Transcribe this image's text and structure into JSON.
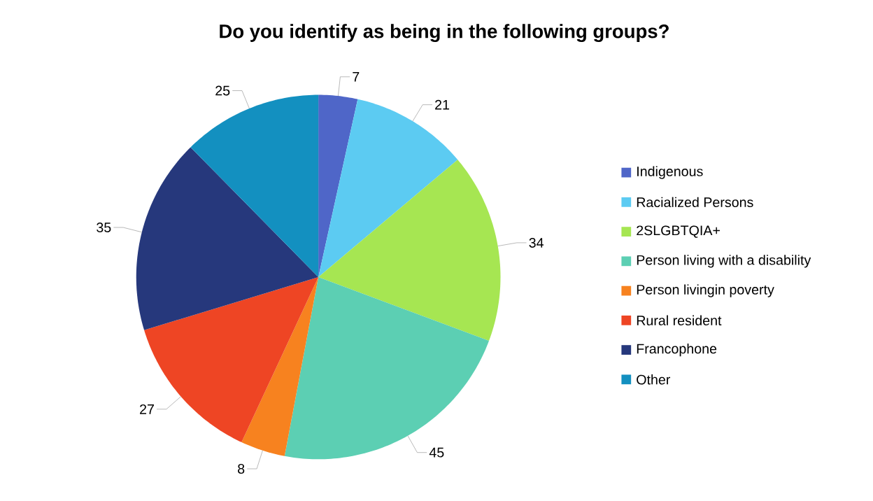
{
  "chart_data": {
    "type": "pie",
    "title": "Do you identify as being in the following groups?",
    "categories": [
      "Indigenous",
      "Racialized Persons",
      "2SLGBTQIA+",
      "Person living with a disability",
      "Person livingin poverty",
      "Rural resident",
      "Francophone",
      "Other"
    ],
    "values": [
      7,
      21,
      34,
      45,
      8,
      27,
      35,
      25
    ],
    "colors": [
      "#4f66c8",
      "#5ccbf2",
      "#a6e652",
      "#5ccfb3",
      "#f7821f",
      "#ee4524",
      "#26387c",
      "#1390c0"
    ],
    "data_labels": true,
    "legend": "right"
  }
}
